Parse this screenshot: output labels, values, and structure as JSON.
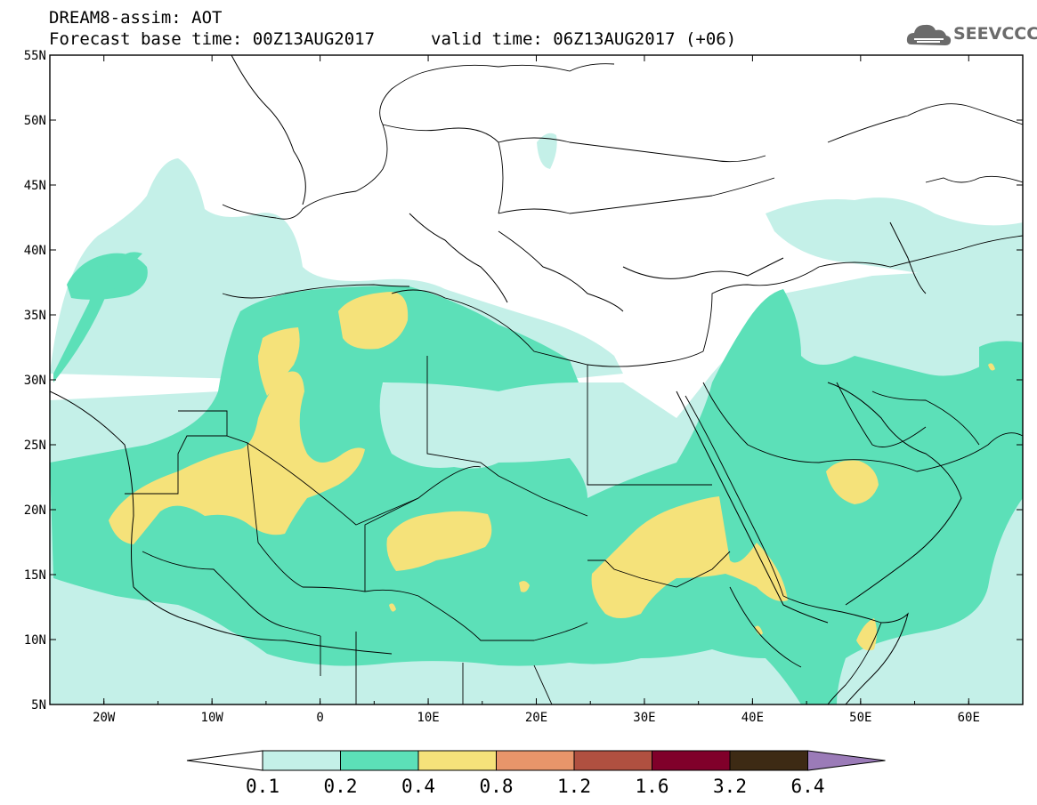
{
  "header": {
    "line1": "DREAM8-assim: AOT",
    "line2": "Forecast base time: 00Z13AUG2017",
    "valid": "valid time: 06Z13AUG2017 (+06)"
  },
  "logo": {
    "text": "SEEVCCC",
    "icon": "cloud-icon",
    "color": "#6b6b6b"
  },
  "chart_data": {
    "type": "contour-map",
    "variable": "AOT",
    "lon_range": [
      -25,
      65
    ],
    "lat_range": [
      5,
      55
    ],
    "lat_ticks": [
      "55N",
      "50N",
      "45N",
      "40N",
      "35N",
      "30N",
      "25N",
      "20N",
      "15N",
      "10N",
      "5N"
    ],
    "lon_ticks": [
      "20W",
      "10W",
      "0",
      "10E",
      "20E",
      "30E",
      "40E",
      "50E",
      "60E"
    ],
    "levels": [
      "0.1",
      "0.2",
      "0.4",
      "0.8",
      "1.2",
      "1.6",
      "3.2",
      "6.4"
    ],
    "level_colors": [
      "#c4f0e8",
      "#5ce0b8",
      "#f5e27a",
      "#e8956a",
      "#b05040",
      "#80002a",
      "#3d2a14",
      "#9b7bb8"
    ],
    "below_color": "#ffffff",
    "above_color": "#9b7bb8"
  }
}
